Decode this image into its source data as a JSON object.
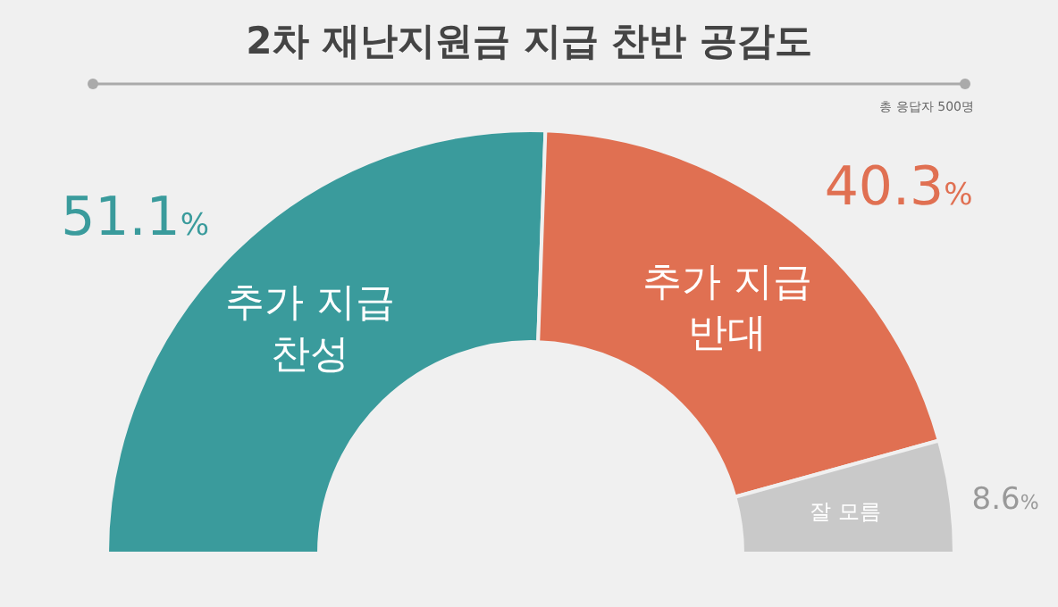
{
  "chart_data": {
    "type": "donut",
    "title": "2차 재난지원금 지급 찬반 공감도",
    "categories": [
      "추가 지급 찬성",
      "추가 지급 반대",
      "잘 모름"
    ],
    "values": [
      51.1,
      40.3,
      8.6
    ],
    "colors": [
      "#3a9b9c",
      "#e07052",
      "#c9c9c9"
    ],
    "value_labels": [
      "51.1%",
      "40.3%",
      "8.6%"
    ],
    "annotations": [
      "총 응답자 500명"
    ]
  }
}
